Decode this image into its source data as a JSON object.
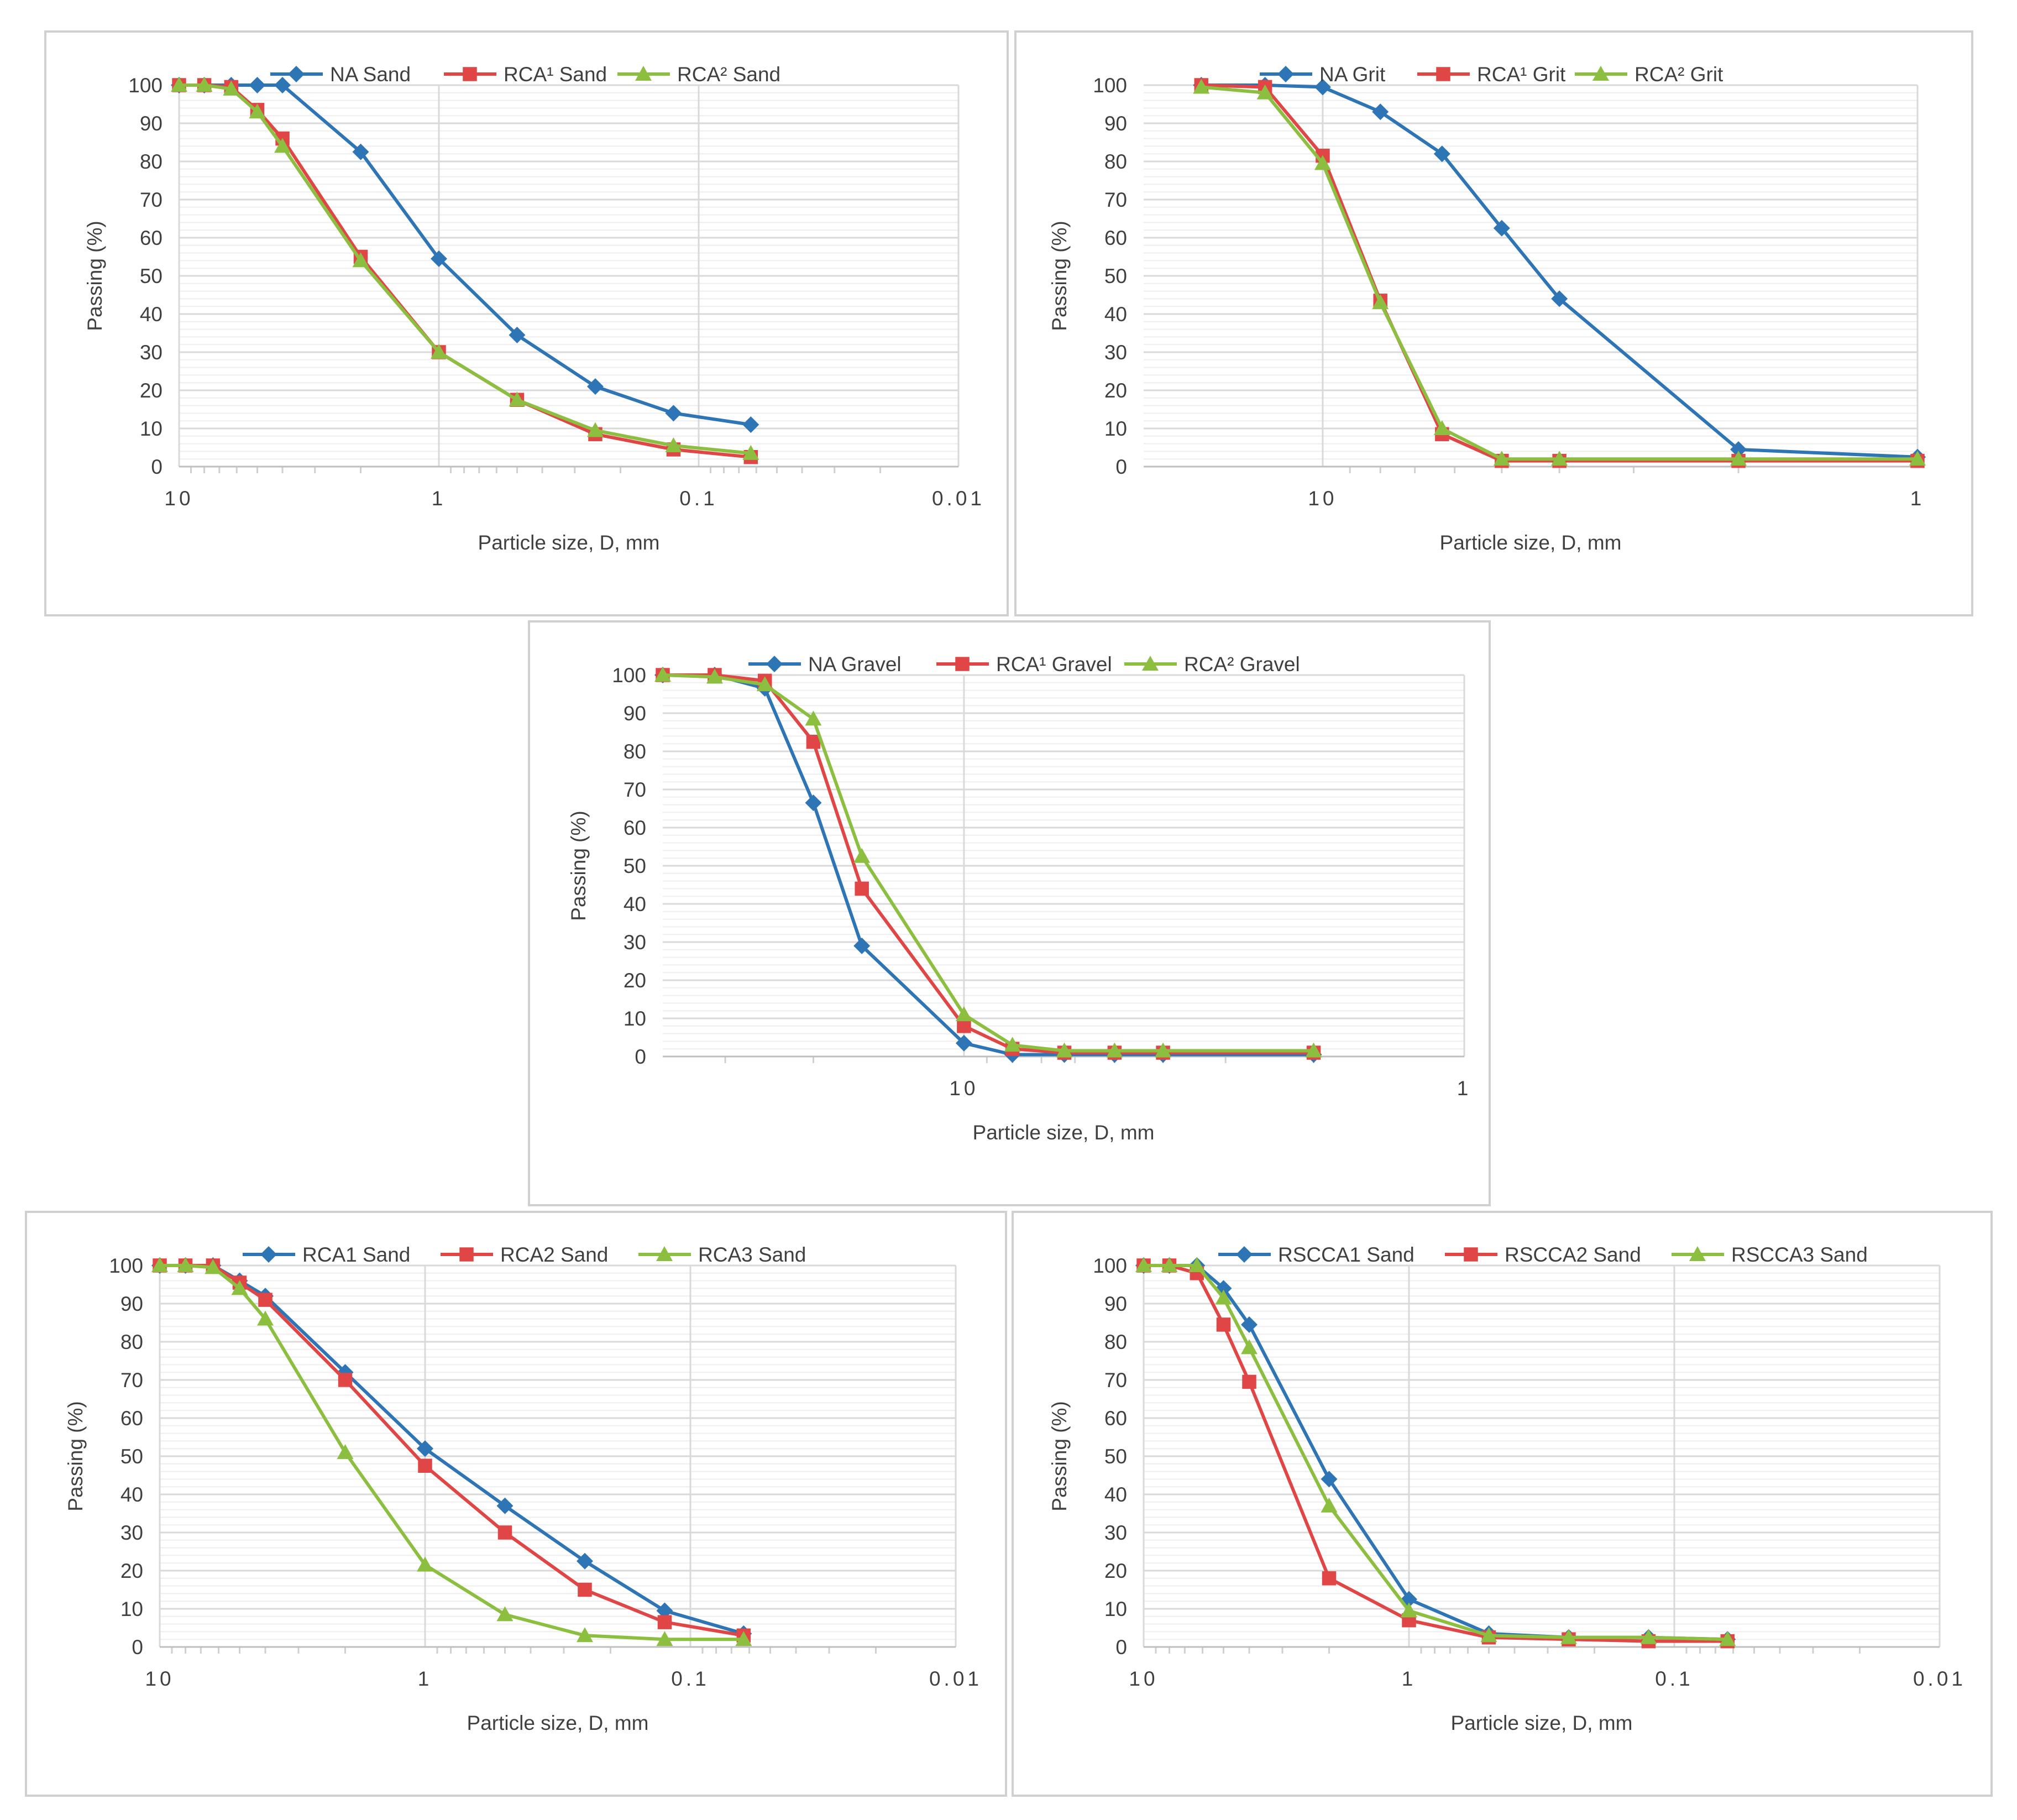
{
  "chart_data": [
    {
      "type": "line",
      "id": "sand-na",
      "x_scale": "log-reversed",
      "xlim": [
        10,
        0.01
      ],
      "ylim": [
        0,
        100
      ],
      "y_ticks": [
        "0",
        "10",
        "20",
        "30",
        "40",
        "50",
        "60",
        "70",
        "80",
        "90",
        "100"
      ],
      "x_tick_labels": [
        {
          "value": 10,
          "label": "10"
        },
        {
          "value": 1,
          "label": "1"
        },
        {
          "value": 0.1,
          "label": "0.1"
        },
        {
          "value": 0.01,
          "label": "0.01"
        }
      ],
      "xlabel": "Particle size, D, mm",
      "ylabel": "Passing (%)",
      "legend": "top",
      "series": [
        {
          "name": "NA Sand",
          "color": "#2e75b6",
          "marker": "diamond",
          "x": [
            10,
            8,
            6.3,
            5,
            4,
            2,
            1,
            0.5,
            0.25,
            0.125,
            0.063
          ],
          "y": [
            100,
            100,
            100,
            100,
            100,
            82.5,
            54.5,
            34.5,
            21,
            14,
            11
          ]
        },
        {
          "name": "RCA¹ Sand",
          "color": "#e04646",
          "marker": "square",
          "x": [
            10,
            8,
            6.3,
            5,
            4,
            2,
            1,
            0.5,
            0.25,
            0.125,
            0.063
          ],
          "y": [
            100,
            100,
            99.5,
            93.5,
            86,
            55,
            30,
            17.5,
            8.5,
            4.5,
            2.5
          ]
        },
        {
          "name": "RCA² Sand",
          "color": "#8cbf3f",
          "marker": "triangle",
          "x": [
            10,
            8,
            6.3,
            5,
            4,
            2,
            1,
            0.5,
            0.25,
            0.125,
            0.063
          ],
          "y": [
            100,
            100,
            99,
            93,
            84,
            54,
            30,
            17.5,
            9.5,
            5.5,
            3.5
          ]
        }
      ]
    },
    {
      "type": "line",
      "id": "grit",
      "x_scale": "log-reversed",
      "xlim": [
        20,
        1
      ],
      "ylim": [
        0,
        100
      ],
      "y_ticks": [
        "0",
        "10",
        "20",
        "30",
        "40",
        "50",
        "60",
        "70",
        "80",
        "90",
        "100"
      ],
      "x_tick_labels": [
        {
          "value": 10,
          "label": "10"
        },
        {
          "value": 1,
          "label": "1"
        }
      ],
      "xlabel": "Particle size, D, mm",
      "ylabel": "Passing (%)",
      "legend": "top",
      "series": [
        {
          "name": "NA Grit",
          "color": "#2e75b6",
          "marker": "diamond",
          "x": [
            16,
            12.5,
            10,
            8,
            6.3,
            5,
            4,
            2,
            1
          ],
          "y": [
            100,
            100,
            99.5,
            93,
            82,
            62.5,
            44,
            4.5,
            2.5
          ]
        },
        {
          "name": "RCA¹ Grit",
          "color": "#e04646",
          "marker": "square",
          "x": [
            16,
            12.5,
            10,
            8,
            6.3,
            5,
            4,
            2,
            1
          ],
          "y": [
            100,
            99.5,
            81.5,
            43.5,
            8.5,
            1.5,
            1.5,
            1.5,
            1.5
          ]
        },
        {
          "name": "RCA² Grit",
          "color": "#8cbf3f",
          "marker": "triangle",
          "x": [
            16,
            12.5,
            10,
            8,
            6.3,
            5,
            4,
            2,
            1
          ],
          "y": [
            99.5,
            98,
            79.5,
            43,
            10,
            2,
            2,
            2,
            2
          ]
        }
      ]
    },
    {
      "type": "line",
      "id": "gravel",
      "x_scale": "log-reversed",
      "xlim": [
        40,
        1
      ],
      "ylim": [
        0,
        100
      ],
      "y_ticks": [
        "0",
        "10",
        "20",
        "30",
        "40",
        "50",
        "60",
        "70",
        "80",
        "90",
        "100"
      ],
      "x_tick_labels": [
        {
          "value": 10,
          "label": "10"
        },
        {
          "value": 1,
          "label": "1"
        }
      ],
      "xlabel": "Particle size, D, mm",
      "ylabel": "Passing (%)",
      "legend": "top",
      "series": [
        {
          "name": "NA Gravel",
          "color": "#2e75b6",
          "marker": "diamond",
          "x": [
            40,
            31.5,
            25,
            20,
            16,
            10,
            8,
            6.3,
            5,
            4,
            2
          ],
          "y": [
            100,
            100,
            96.5,
            66.5,
            29,
            3.5,
            0.5,
            0.5,
            0.5,
            0.5,
            0.5
          ]
        },
        {
          "name": "RCA¹ Gravel",
          "color": "#e04646",
          "marker": "square",
          "x": [
            40,
            31.5,
            25,
            20,
            16,
            10,
            8,
            6.3,
            5,
            4,
            2
          ],
          "y": [
            100,
            100,
            98.5,
            82.5,
            44,
            8,
            2,
            1,
            1,
            1,
            1
          ]
        },
        {
          "name": "RCA² Gravel",
          "color": "#8cbf3f",
          "marker": "triangle",
          "x": [
            40,
            31.5,
            25,
            20,
            16,
            10,
            8,
            6.3,
            5,
            4,
            2
          ],
          "y": [
            100,
            99.5,
            97.5,
            88.5,
            52.5,
            11,
            3,
            1.5,
            1.5,
            1.5,
            1.5
          ]
        }
      ]
    },
    {
      "type": "line",
      "id": "sand-rca",
      "x_scale": "log-reversed",
      "xlim": [
        10,
        0.01
      ],
      "ylim": [
        0,
        100
      ],
      "y_ticks": [
        "0",
        "10",
        "20",
        "30",
        "40",
        "50",
        "60",
        "70",
        "80",
        "90",
        "100"
      ],
      "x_tick_labels": [
        {
          "value": 10,
          "label": "10"
        },
        {
          "value": 1,
          "label": "1"
        },
        {
          "value": 0.1,
          "label": "0.1"
        },
        {
          "value": 0.01,
          "label": "0.01"
        }
      ],
      "xlabel": "Particle size, D, mm",
      "ylabel": "Passing (%)",
      "legend": "top",
      "series": [
        {
          "name": "RCA1 Sand",
          "color": "#2e75b6",
          "marker": "diamond",
          "x": [
            10,
            8,
            6.3,
            5,
            4,
            2,
            1,
            0.5,
            0.25,
            0.125,
            0.063
          ],
          "y": [
            100,
            100,
            100,
            96,
            92,
            72,
            52,
            37,
            22.5,
            9.5,
            3.5
          ]
        },
        {
          "name": "RCA2 Sand",
          "color": "#e04646",
          "marker": "square",
          "x": [
            10,
            8,
            6.3,
            5,
            4,
            2,
            1,
            0.5,
            0.25,
            0.125,
            0.063
          ],
          "y": [
            100,
            100,
            100,
            95.5,
            91,
            70,
            47.5,
            30,
            15,
            6.5,
            3
          ]
        },
        {
          "name": "RCA3 Sand",
          "color": "#8cbf3f",
          "marker": "triangle",
          "x": [
            10,
            8,
            6.3,
            5,
            4,
            2,
            1,
            0.5,
            0.25,
            0.125,
            0.063
          ],
          "y": [
            100,
            100,
            99.5,
            94,
            86,
            51,
            21.5,
            8.5,
            3,
            2,
            2
          ]
        }
      ]
    },
    {
      "type": "line",
      "id": "sand-rscca",
      "x_scale": "log-reversed",
      "xlim": [
        10,
        0.01
      ],
      "ylim": [
        0,
        100
      ],
      "y_ticks": [
        "0",
        "10",
        "20",
        "30",
        "40",
        "50",
        "60",
        "70",
        "80",
        "90",
        "100"
      ],
      "x_tick_labels": [
        {
          "value": 10,
          "label": "10"
        },
        {
          "value": 1,
          "label": "1"
        },
        {
          "value": 0.1,
          "label": "0.1"
        },
        {
          "value": 0.01,
          "label": "0.01"
        }
      ],
      "xlabel": "Particle size, D, mm",
      "ylabel": "Passing (%)",
      "legend": "top",
      "series": [
        {
          "name": "RSCCA1 Sand",
          "color": "#2e75b6",
          "marker": "diamond",
          "x": [
            10,
            8,
            6.3,
            5,
            4,
            2,
            1,
            0.5,
            0.25,
            0.125,
            0.063
          ],
          "y": [
            100,
            100,
            100,
            94,
            84.5,
            44,
            12.5,
            3.5,
            2.5,
            2.5,
            2
          ]
        },
        {
          "name": "RSCCA2 Sand",
          "color": "#e04646",
          "marker": "square",
          "x": [
            10,
            8,
            6.3,
            5,
            4,
            2,
            1,
            0.5,
            0.25,
            0.125,
            0.063
          ],
          "y": [
            100,
            100,
            98,
            84.5,
            69.5,
            18,
            7,
            2.5,
            2,
            1.5,
            1.5
          ]
        },
        {
          "name": "RSCCA3 Sand",
          "color": "#8cbf3f",
          "marker": "triangle",
          "x": [
            10,
            8,
            6.3,
            5,
            4,
            2,
            1,
            0.5,
            0.25,
            0.125,
            0.063
          ],
          "y": [
            100,
            100,
            100,
            91.5,
            78.5,
            37,
            9.5,
            3,
            2.5,
            2.5,
            2
          ]
        }
      ]
    }
  ]
}
